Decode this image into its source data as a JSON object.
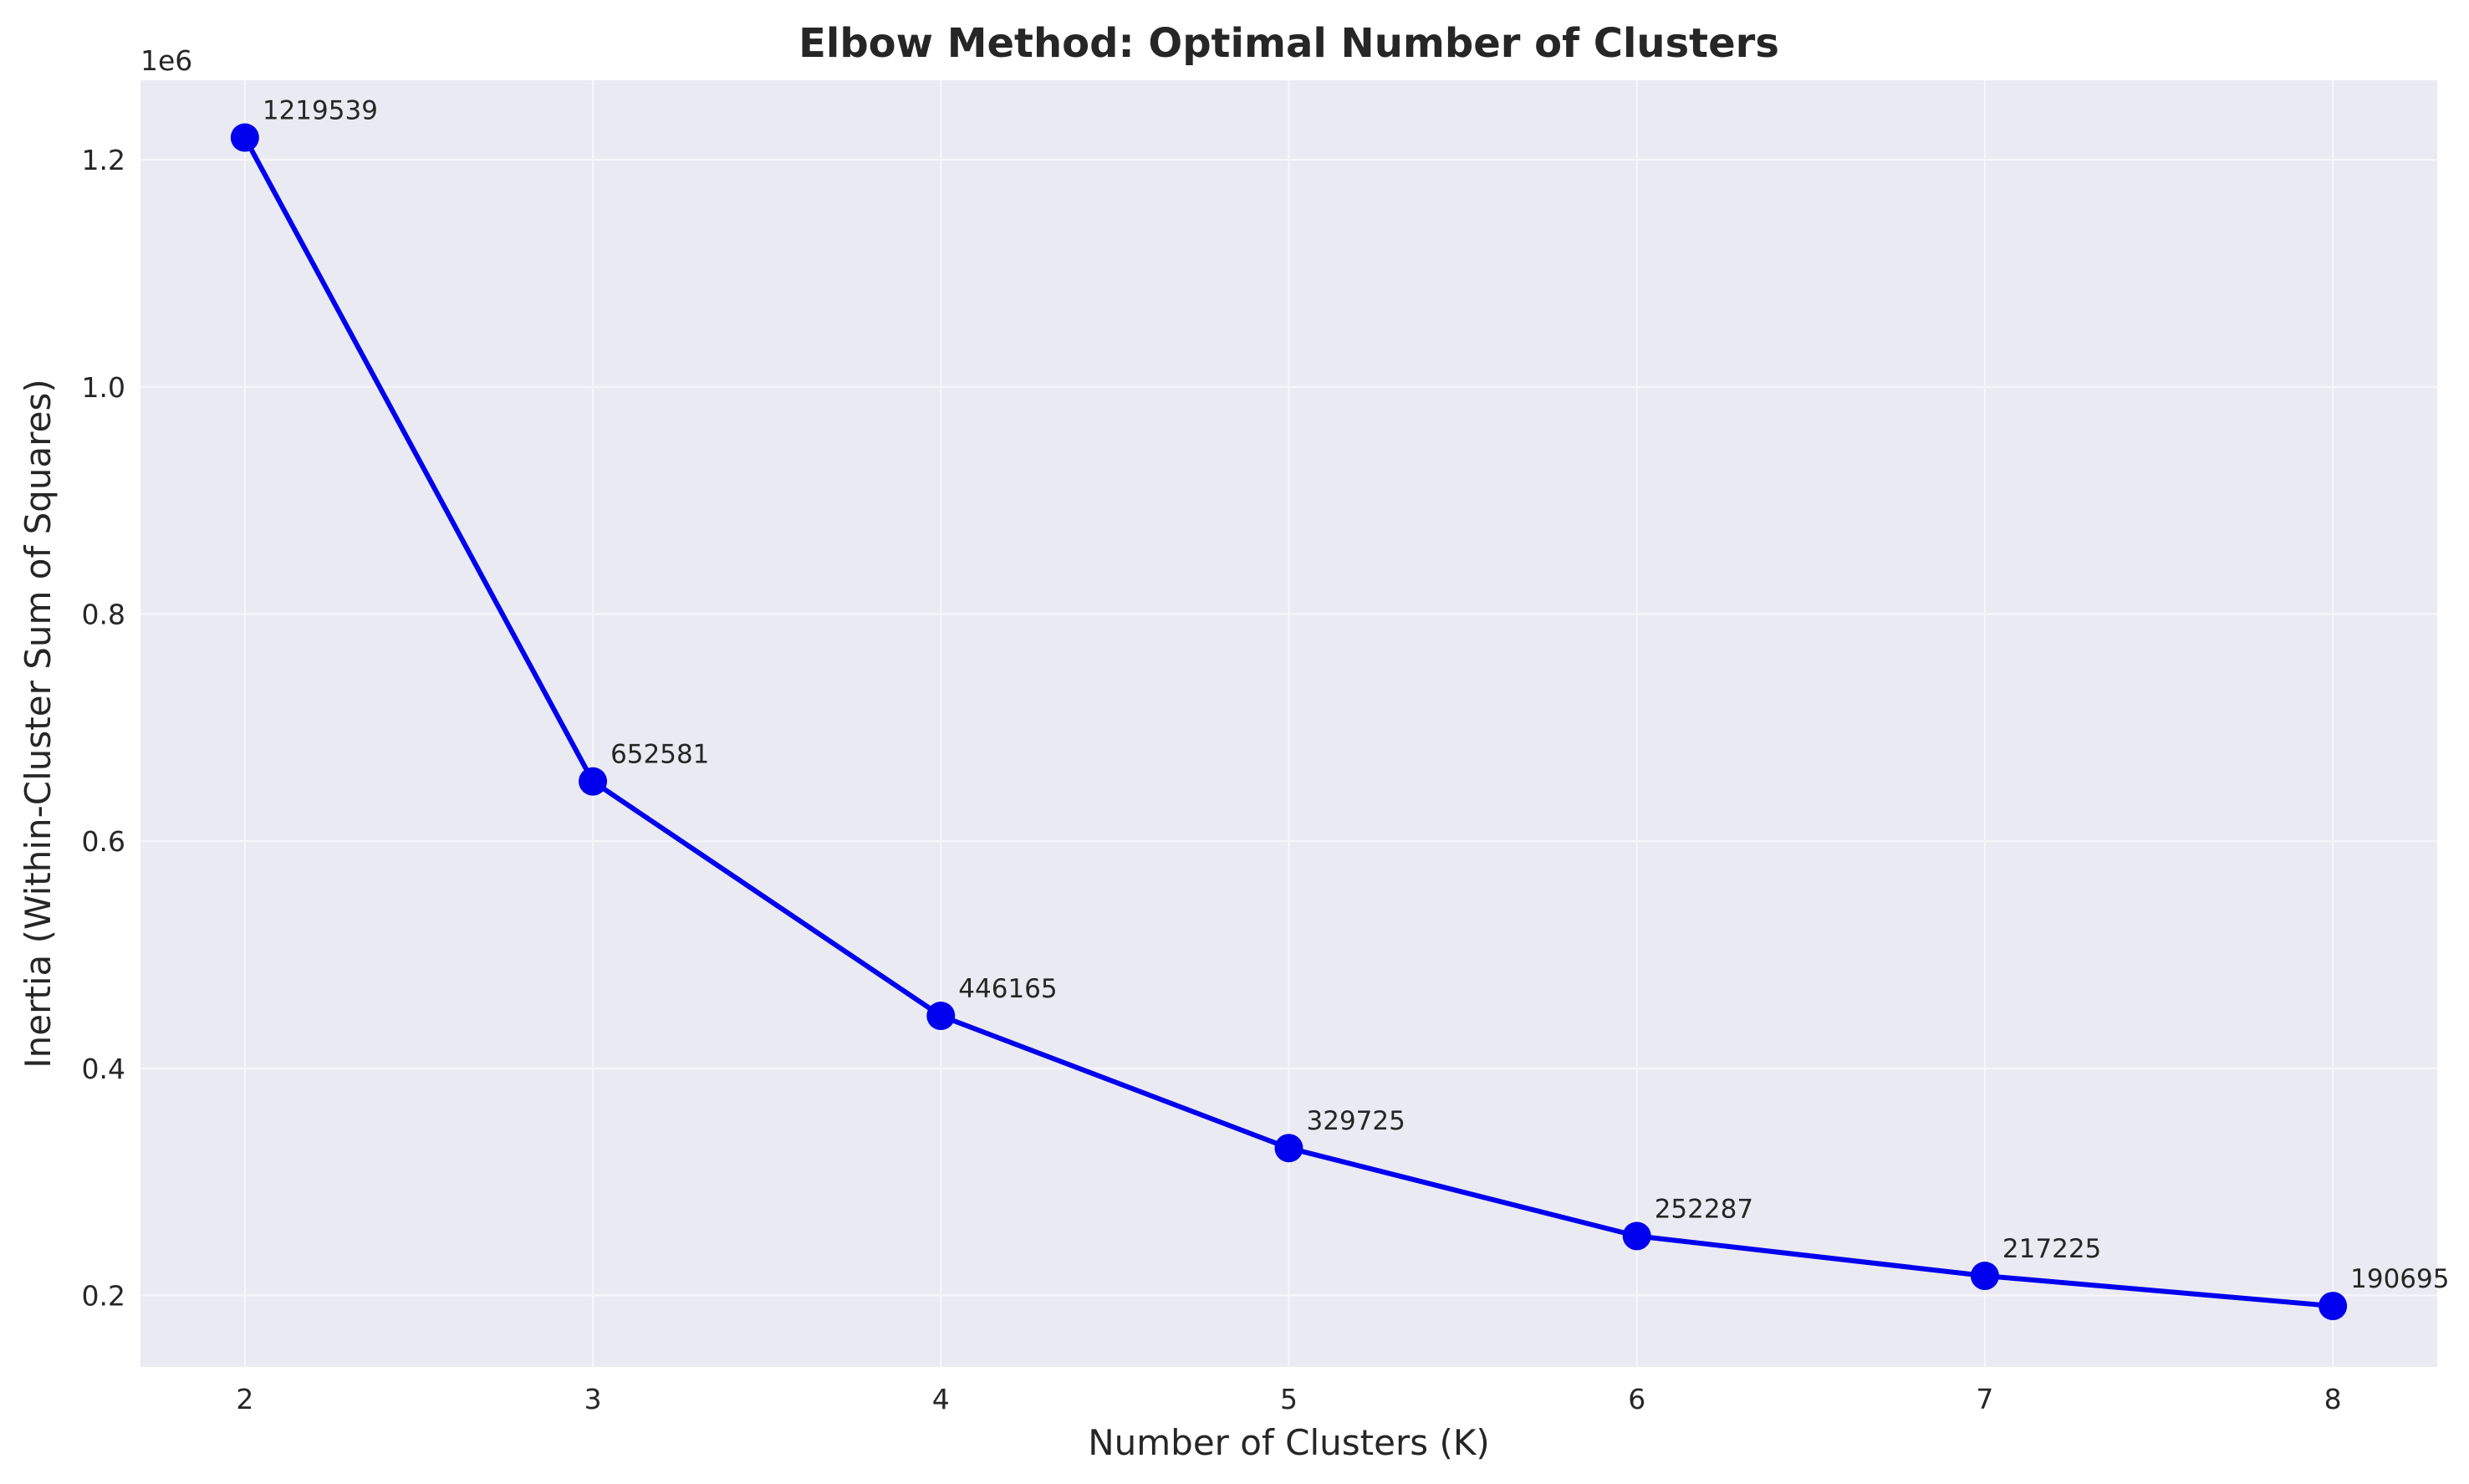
{
  "chart_data": {
    "type": "line",
    "title": "Elbow Method: Optimal Number of Clusters",
    "xlabel": "Number of Clusters (K)",
    "ylabel": "Inertia (Within-Cluster Sum of Squares)",
    "x": [
      2,
      3,
      4,
      5,
      6,
      7,
      8
    ],
    "series": [
      {
        "values": [
          1219539,
          652581,
          446165,
          329725,
          252287,
          217225,
          190695
        ],
        "color": "#0000ee",
        "marker": "circle"
      }
    ],
    "data_labels": [
      "1219539",
      "652581",
      "446165",
      "329725",
      "252287",
      "217225",
      "190695"
    ],
    "xlim": [
      1.7,
      8.3
    ],
    "ylim": [
      137000,
      1270000
    ],
    "x_ticks": [
      2,
      3,
      4,
      5,
      6,
      7,
      8
    ],
    "x_tick_labels": [
      "2",
      "3",
      "4",
      "5",
      "6",
      "7",
      "8"
    ],
    "y_ticks": [
      200000,
      400000,
      600000,
      800000,
      1000000,
      1200000
    ],
    "y_tick_labels": [
      "0.2",
      "0.4",
      "0.6",
      "0.8",
      "1.0",
      "1.2"
    ],
    "y_offset_label": "1e6",
    "grid": true,
    "legend": "none",
    "background_color": "#eaeaf2",
    "grid_color": "#f7f7fa"
  }
}
